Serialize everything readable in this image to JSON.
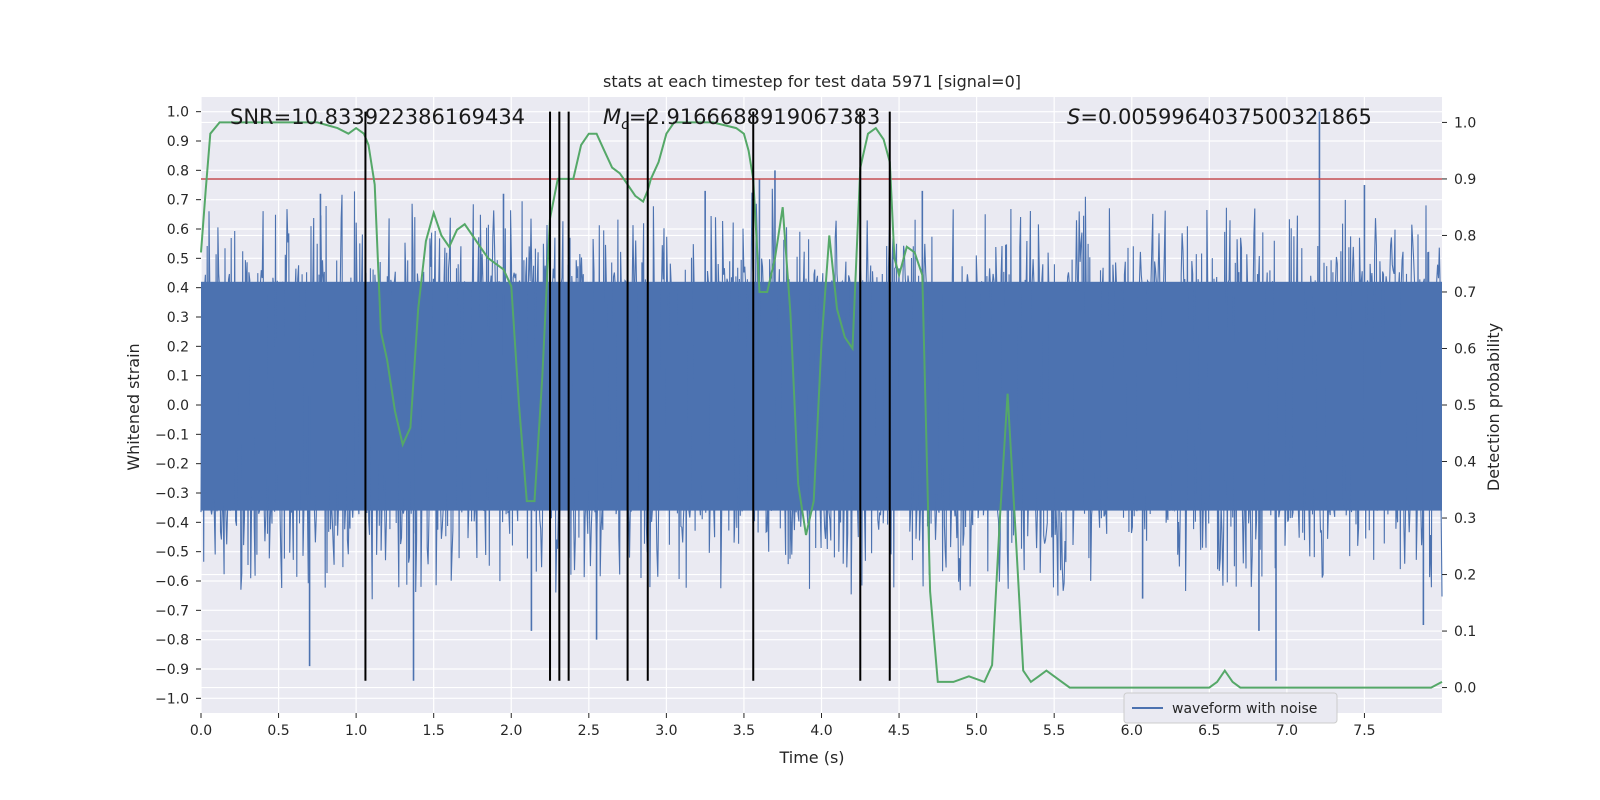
{
  "chart_data": {
    "type": "line",
    "title": "stats at each timestep for test data 5971 [signal=0]",
    "xlabel": "Time (s)",
    "ylabel": "Whitened strain",
    "y2label": "Detection probability",
    "xlim": [
      0,
      8
    ],
    "ylim": [
      -1.05,
      1.05
    ],
    "y2lim": [
      -0.045,
      1.045
    ],
    "x_ticks": [
      "0.0",
      "0.5",
      "1.0",
      "1.5",
      "2.0",
      "2.5",
      "3.0",
      "3.5",
      "4.0",
      "4.5",
      "5.0",
      "5.5",
      "6.0",
      "6.5",
      "7.0",
      "7.5"
    ],
    "y_ticks": [
      "1.0",
      "0.9",
      "0.8",
      "0.7",
      "0.6",
      "0.5",
      "0.4",
      "0.3",
      "0.2",
      "0.1",
      "0.0",
      "−0.1",
      "−0.2",
      "−0.3",
      "−0.4",
      "−0.5",
      "−0.6",
      "−0.7",
      "−0.8",
      "−0.9",
      "−1.0"
    ],
    "y2_ticks": [
      "1.0",
      "0.9",
      "0.8",
      "0.7",
      "0.6",
      "0.5",
      "0.4",
      "0.3",
      "0.2",
      "0.1",
      "0.0"
    ],
    "annotations": {
      "snr": "SNR=10.833922386169434",
      "mc_symbol": "M",
      "mc_subscript": "c",
      "mc_value": "=2.9166688919067383",
      "s_symbol": "S",
      "s_value": "=0.005996403750032186​5"
    },
    "threshold": {
      "value": 0.9,
      "axis": "right",
      "color": "#c44e52"
    },
    "vertical_lines_x": [
      1.06,
      2.25,
      2.31,
      2.37,
      2.75,
      2.88,
      3.56,
      4.25,
      4.44
    ],
    "vertical_lines_range": [
      -0.94,
      1.0
    ],
    "series": [
      {
        "name": "waveform with noise",
        "color": "#4c72b0",
        "axis": "left",
        "envelope": {
          "core": [
            -0.36,
            0.42
          ],
          "typical_peak": 0.62,
          "max": 1.0,
          "min": -0.94
        },
        "peaks": [
          [
            0.7,
            -0.89
          ],
          [
            1.37,
            -0.94
          ],
          [
            2.13,
            -0.77
          ],
          [
            2.55,
            -0.8
          ],
          [
            3.6,
            0.77
          ],
          [
            3.7,
            0.8
          ],
          [
            4.65,
            0.73
          ],
          [
            6.07,
            -0.66
          ],
          [
            6.82,
            -0.77
          ],
          [
            6.93,
            -0.94
          ],
          [
            7.21,
            1.0
          ],
          [
            7.5,
            0.75
          ],
          [
            7.88,
            -0.75
          ],
          [
            0.77,
            0.72
          ],
          [
            1.95,
            0.72
          ],
          [
            3.25,
            0.73
          ]
        ]
      },
      {
        "name": "detection probability",
        "color": "#55a868",
        "axis": "right",
        "x": [
          0.0,
          0.03,
          0.06,
          0.12,
          0.3,
          0.5,
          0.75,
          0.88,
          0.95,
          1.0,
          1.05,
          1.08,
          1.12,
          1.16,
          1.2,
          1.25,
          1.3,
          1.35,
          1.4,
          1.45,
          1.5,
          1.55,
          1.6,
          1.65,
          1.7,
          1.75,
          1.8,
          1.85,
          1.9,
          1.95,
          2.0,
          2.05,
          2.1,
          2.15,
          2.2,
          2.25,
          2.3,
          2.35,
          2.4,
          2.45,
          2.5,
          2.55,
          2.6,
          2.65,
          2.7,
          2.75,
          2.8,
          2.85,
          2.88,
          2.9,
          2.95,
          3.0,
          3.05,
          3.15,
          3.3,
          3.45,
          3.5,
          3.53,
          3.56,
          3.6,
          3.65,
          3.7,
          3.75,
          3.8,
          3.85,
          3.9,
          3.95,
          4.0,
          4.05,
          4.1,
          4.15,
          4.2,
          4.25,
          4.3,
          4.35,
          4.4,
          4.44,
          4.47,
          4.5,
          4.55,
          4.6,
          4.65,
          4.7,
          4.75,
          4.85,
          4.95,
          5.05,
          5.1,
          5.15,
          5.2,
          5.25,
          5.3,
          5.35,
          5.4,
          5.45,
          5.5,
          5.55,
          5.6,
          5.7,
          5.9,
          6.2,
          6.3,
          6.4,
          6.45,
          6.5,
          6.55,
          6.6,
          6.65,
          6.7,
          6.8,
          6.85,
          6.9,
          7.0,
          7.1,
          7.2,
          7.5,
          7.6,
          7.8,
          7.93,
          8.0
        ],
        "y": [
          0.77,
          0.88,
          0.98,
          1.0,
          1.0,
          1.0,
          1.0,
          0.99,
          0.98,
          0.99,
          0.98,
          0.96,
          0.89,
          0.63,
          0.58,
          0.49,
          0.43,
          0.46,
          0.67,
          0.79,
          0.84,
          0.8,
          0.78,
          0.81,
          0.82,
          0.8,
          0.78,
          0.76,
          0.75,
          0.74,
          0.71,
          0.5,
          0.33,
          0.33,
          0.55,
          0.83,
          0.9,
          0.9,
          0.9,
          0.96,
          0.98,
          0.98,
          0.95,
          0.92,
          0.91,
          0.89,
          0.87,
          0.86,
          0.88,
          0.9,
          0.93,
          0.98,
          1.0,
          1.0,
          1.0,
          0.99,
          0.98,
          0.95,
          0.9,
          0.7,
          0.7,
          0.76,
          0.85,
          0.66,
          0.36,
          0.27,
          0.33,
          0.61,
          0.8,
          0.67,
          0.62,
          0.6,
          0.92,
          0.98,
          0.99,
          0.97,
          0.93,
          0.76,
          0.73,
          0.78,
          0.77,
          0.73,
          0.17,
          0.01,
          0.01,
          0.02,
          0.01,
          0.04,
          0.3,
          0.52,
          0.28,
          0.03,
          0.01,
          0.02,
          0.03,
          0.02,
          0.01,
          0.0,
          0.0,
          0.0,
          0.0,
          0.0,
          0.0,
          0.0,
          0.0,
          0.01,
          0.03,
          0.01,
          0.0,
          0.0,
          0.0,
          0.0,
          0.0,
          0.0,
          0.0,
          0.0,
          0.0,
          0.0,
          0.0,
          0.01
        ]
      }
    ],
    "legend": {
      "label": "waveform with noise",
      "location": "lower-right"
    }
  }
}
